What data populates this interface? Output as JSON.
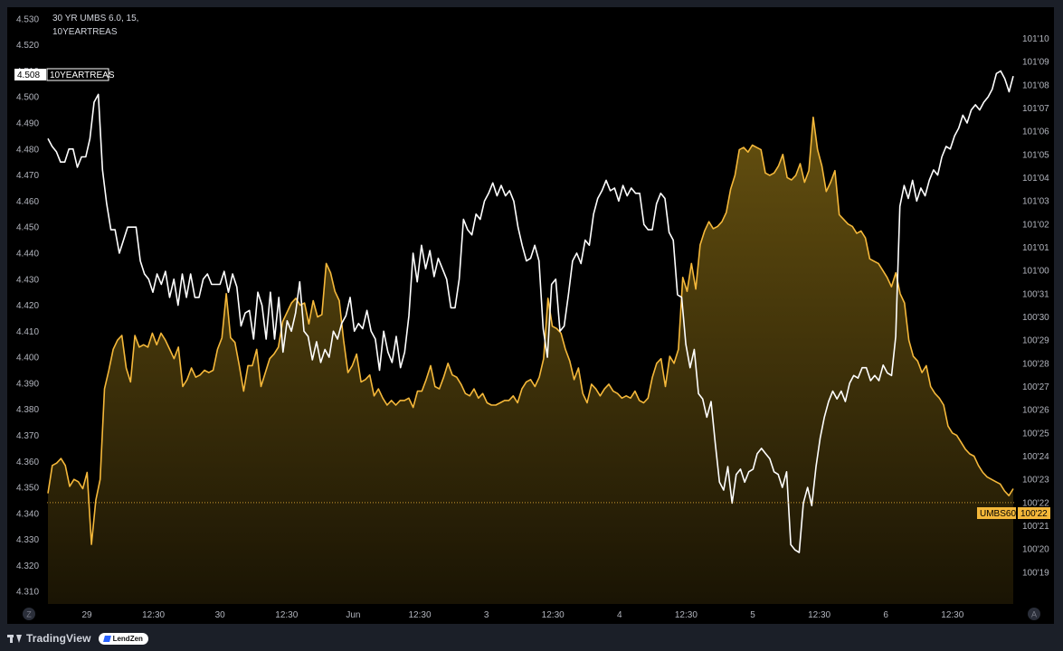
{
  "branding": {
    "platform": "TradingView",
    "partner": "LendZen"
  },
  "legend": {
    "line1": "30 YR UMBS 6.0, 15,",
    "line2": "10YEARTREAS"
  },
  "badges": {
    "left_value": "4.508",
    "left_label": "10YEARTREAS",
    "right_label": "UMBS60",
    "right_value": "100'22"
  },
  "axis_buttons": {
    "left": "Z",
    "right": "A"
  },
  "colors": {
    "background": "#000000",
    "umbs_line": "#f5b83a",
    "umbs_fill_top": "#6a5410",
    "umbs_fill_bottom": "#1b1504",
    "treasury_line": "#ffffff",
    "badge_umbs": "#f5b83a",
    "badge_treasury": "#ffffff"
  },
  "chart_data": {
    "type": "line",
    "title": "30 YR UMBS 6.0, 15, 10YEARTREAS",
    "x_ticks": [
      "29",
      "12:30",
      "30",
      "12:30",
      "Jun",
      "12:30",
      "3",
      "12:30",
      "4",
      "12:30",
      "5",
      "12:30",
      "6",
      "12:30"
    ],
    "left_axis": {
      "label": "10YEARTREAS",
      "unit": "yield",
      "ticks": [
        "4.530",
        "4.520",
        "4.510",
        "4.500",
        "4.490",
        "4.480",
        "4.470",
        "4.460",
        "4.450",
        "4.440",
        "4.430",
        "4.420",
        "4.410",
        "4.400",
        "4.390",
        "4.380",
        "4.370",
        "4.360",
        "4.350",
        "4.340",
        "4.330",
        "4.320",
        "4.310"
      ],
      "range": [
        4.308,
        4.531
      ]
    },
    "right_axis": {
      "label": "UMBS60",
      "unit": "32nds",
      "ticks": [
        "101'10",
        "101'09",
        "101'08",
        "101'07",
        "101'06",
        "101'05",
        "101'04",
        "101'03",
        "101'02",
        "101'01",
        "101'00",
        "100'31",
        "100'30",
        "100'29",
        "100'28",
        "100'27",
        "100'26",
        "100'25",
        "100'24",
        "100'23",
        "100'22",
        "100'21",
        "100'20",
        "100'19"
      ],
      "range_32nds": [
        3218.1,
        3242.6
      ]
    },
    "series": [
      {
        "name": "10YEARTREAS",
        "axis": "left",
        "last_value": 4.508,
        "values": [
          4.484,
          4.481,
          4.479,
          4.475,
          4.475,
          4.48,
          4.48,
          4.473,
          4.477,
          4.477,
          4.484,
          4.498,
          4.501,
          4.472,
          4.459,
          4.449,
          4.449,
          4.44,
          4.445,
          4.45,
          4.45,
          4.45,
          4.437,
          4.432,
          4.43,
          4.425,
          4.432,
          4.428,
          4.433,
          4.423,
          4.43,
          4.42,
          4.432,
          4.423,
          4.432,
          4.423,
          4.423,
          4.43,
          4.432,
          4.428,
          4.428,
          4.428,
          4.433,
          4.425,
          4.432,
          4.427,
          4.412,
          4.417,
          4.418,
          4.407,
          4.425,
          4.42,
          4.407,
          4.425,
          4.407,
          4.423,
          4.402,
          4.414,
          4.41,
          4.417,
          4.429,
          4.41,
          4.408,
          4.399,
          4.406,
          4.398,
          4.403,
          4.4,
          4.41,
          4.407,
          4.413,
          4.416,
          4.423,
          4.41,
          4.413,
          4.411,
          4.418,
          4.41,
          4.407,
          4.395,
          4.41,
          4.402,
          4.398,
          4.408,
          4.396,
          4.402,
          4.416,
          4.44,
          4.429,
          4.443,
          4.434,
          4.441,
          4.431,
          4.438,
          4.434,
          4.43,
          4.419,
          4.419,
          4.43,
          4.453,
          4.449,
          4.447,
          4.455,
          4.453,
          4.46,
          4.463,
          4.467,
          4.462,
          4.466,
          4.462,
          4.464,
          4.46,
          4.45,
          4.443,
          4.437,
          4.438,
          4.443,
          4.437,
          4.411,
          4.4,
          4.428,
          4.43,
          4.41,
          4.412,
          4.424,
          4.437,
          4.44,
          4.436,
          4.445,
          4.443,
          4.455,
          4.461,
          4.464,
          4.468,
          4.464,
          4.465,
          4.46,
          4.466,
          4.462,
          4.465,
          4.463,
          4.463,
          4.451,
          4.449,
          4.449,
          4.459,
          4.463,
          4.461,
          4.448,
          4.445,
          4.424,
          4.423,
          4.405,
          4.396,
          4.403,
          4.386,
          4.384,
          4.377,
          4.383,
          4.367,
          4.352,
          4.349,
          4.358,
          4.344,
          4.355,
          4.357,
          4.352,
          4.356,
          4.357,
          4.363,
          4.365,
          4.363,
          4.361,
          4.356,
          4.355,
          4.35,
          4.356,
          4.328,
          4.326,
          4.325,
          4.344,
          4.35,
          4.343,
          4.358,
          4.369,
          4.377,
          4.383,
          4.387,
          4.384,
          4.387,
          4.383,
          4.39,
          4.393,
          4.392,
          4.396,
          4.396,
          4.391,
          4.393,
          4.391,
          4.397,
          4.394,
          4.393,
          4.408,
          4.458,
          4.466,
          4.461,
          4.468,
          4.46,
          4.465,
          4.462,
          4.468,
          4.472,
          4.47,
          4.477,
          4.481,
          4.48,
          4.485,
          4.488,
          4.493,
          4.49,
          4.495,
          4.497,
          4.495,
          4.498,
          4.5,
          4.503,
          4.509,
          4.51,
          4.507,
          4.502,
          4.508
        ]
      },
      {
        "name": "UMBS60",
        "axis": "right",
        "last_value": "100'22",
        "values_32nds": [
          3222.4,
          3223.6,
          3223.7,
          3223.9,
          3223.6,
          3222.7,
          3223.0,
          3222.9,
          3222.6,
          3223.3,
          3220.2,
          3222.1,
          3223.0,
          3226.9,
          3227.7,
          3228.6,
          3229.0,
          3229.2,
          3227.8,
          3227.2,
          3229.2,
          3228.7,
          3228.8,
          3228.7,
          3229.3,
          3228.8,
          3229.3,
          3229.0,
          3228.6,
          3228.2,
          3228.7,
          3227.0,
          3227.3,
          3227.8,
          3227.4,
          3227.5,
          3227.7,
          3227.6,
          3227.7,
          3228.6,
          3229.1,
          3231.0,
          3229.1,
          3228.9,
          3227.9,
          3226.8,
          3227.9,
          3227.9,
          3228.6,
          3227.0,
          3227.6,
          3228.2,
          3228.4,
          3228.7,
          3229.8,
          3230.2,
          3230.6,
          3230.8,
          3230.5,
          3230.6,
          3229.7,
          3230.7,
          3230.0,
          3230.1,
          3232.3,
          3231.9,
          3231.1,
          3230.7,
          3229.0,
          3227.6,
          3227.9,
          3228.4,
          3227.2,
          3227.3,
          3227.5,
          3226.6,
          3226.9,
          3226.5,
          3226.2,
          3226.4,
          3226.2,
          3226.4,
          3226.4,
          3226.5,
          3226.1,
          3226.8,
          3226.8,
          3227.3,
          3227.9,
          3227.0,
          3226.9,
          3227.4,
          3228.0,
          3227.5,
          3227.4,
          3227.1,
          3226.7,
          3226.6,
          3226.9,
          3226.5,
          3226.7,
          3226.3,
          3226.2,
          3226.2,
          3226.3,
          3226.4,
          3226.4,
          3226.6,
          3226.3,
          3226.9,
          3227.2,
          3227.3,
          3227.0,
          3227.4,
          3228.2,
          3230.8,
          3229.6,
          3229.5,
          3229.3,
          3228.6,
          3228.1,
          3227.3,
          3227.8,
          3226.7,
          3226.3,
          3227.1,
          3226.9,
          3226.6,
          3226.9,
          3227.1,
          3226.8,
          3226.7,
          3226.5,
          3226.6,
          3226.5,
          3226.8,
          3226.4,
          3226.3,
          3226.5,
          3227.4,
          3228.0,
          3228.2,
          3227.0,
          3228.3,
          3228.0,
          3228.6,
          3231.7,
          3231.1,
          3232.3,
          3231.2,
          3233.1,
          3233.7,
          3234.1,
          3233.8,
          3233.9,
          3234.1,
          3234.5,
          3235.5,
          3236.1,
          3237.2,
          3237.3,
          3237.1,
          3237.4,
          3237.3,
          3237.2,
          3236.2,
          3236.1,
          3236.2,
          3236.5,
          3237.0,
          3236.0,
          3235.9,
          3236.1,
          3236.6,
          3235.8,
          3236.3,
          3238.6,
          3237.2,
          3236.5,
          3235.4,
          3235.8,
          3236.3,
          3234.4,
          3234.2,
          3234.0,
          3233.9,
          3233.6,
          3233.7,
          3233.4,
          3232.5,
          3232.4,
          3232.3,
          3232.0,
          3231.7,
          3231.3,
          3231.9,
          3231.0,
          3230.6,
          3229.0,
          3228.3,
          3228.1,
          3227.6,
          3227.9,
          3227.0,
          3226.7,
          3226.5,
          3226.2,
          3225.3,
          3225.0,
          3224.9,
          3224.6,
          3224.3,
          3224.1,
          3224.0,
          3223.6,
          3223.3,
          3223.1,
          3223.0,
          3222.9,
          3222.8,
          3222.5,
          3222.3,
          3222.6
        ]
      }
    ],
    "grid": false,
    "legend_position": "top-left"
  }
}
